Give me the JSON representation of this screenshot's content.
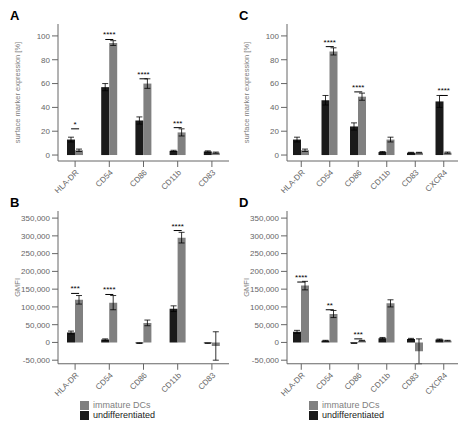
{
  "chart_data": [
    {
      "type": "bar",
      "title": "A",
      "categories": [
        "HLA-DR",
        "CD54",
        "CD86",
        "CD11b",
        "CD83"
      ],
      "series": [
        {
          "name": "undifferentiated",
          "color": "#1a1a1a",
          "values": [
            13,
            57,
            29,
            3.5,
            3
          ],
          "errors": [
            2,
            3,
            3,
            0.5,
            0.5
          ]
        },
        {
          "name": "immature DCs",
          "color": "#808080",
          "values": [
            4,
            94,
            60,
            19,
            2
          ],
          "errors": [
            1,
            2,
            4,
            3,
            0.5
          ]
        }
      ],
      "ylabel": "surface marker expression [%]",
      "ylim": [
        -5,
        110
      ],
      "yticks": [
        0,
        20,
        40,
        60,
        80,
        100
      ],
      "annotations": [
        {
          "x": "HLA-DR",
          "y": 22,
          "text": "*"
        },
        {
          "x": "CD54",
          "y": 97,
          "text": "****"
        },
        {
          "x": "CD86",
          "y": 64,
          "text": "****"
        },
        {
          "x": "CD11b",
          "y": 23,
          "text": "***"
        }
      ],
      "grid": false
    },
    {
      "type": "bar",
      "title": "C",
      "categories": [
        "HLA-DR",
        "CD54",
        "CD86",
        "CD11b",
        "CD83",
        "CXCR4"
      ],
      "series": [
        {
          "name": "undifferentiated",
          "color": "#1a1a1a",
          "values": [
            13,
            46,
            24,
            2.5,
            2,
            45
          ],
          "errors": [
            2,
            4,
            3,
            0.5,
            0.3,
            5
          ]
        },
        {
          "name": "immature DCs",
          "color": "#808080",
          "values": [
            4,
            87,
            49,
            13,
            2,
            2
          ],
          "errors": [
            1,
            3,
            3,
            2,
            0.3,
            0.5
          ]
        }
      ],
      "ylabel": "surface marker expression [%]",
      "ylim": [
        -5,
        110
      ],
      "yticks": [
        0,
        20,
        40,
        60,
        80,
        100
      ],
      "annotations": [
        {
          "x": "CD54",
          "y": 91,
          "text": "****"
        },
        {
          "x": "CD86",
          "y": 53,
          "text": "****"
        },
        {
          "x": "CXCR4",
          "y": 50,
          "text": "****"
        }
      ],
      "grid": false
    },
    {
      "type": "bar",
      "title": "B",
      "categories": [
        "HLA-DR",
        "CD54",
        "CD86",
        "CD11b",
        "CD83"
      ],
      "series": [
        {
          "name": "undifferentiated",
          "color": "#1a1a1a",
          "values": [
            28000,
            8000,
            -2000,
            95000,
            -2000
          ],
          "errors": [
            4000,
            2000,
            1000,
            8000,
            500
          ]
        },
        {
          "name": "immature DCs",
          "color": "#808080",
          "values": [
            120000,
            112000,
            55000,
            295000,
            -10000
          ],
          "errors": [
            12000,
            20000,
            8000,
            15000,
            40000
          ]
        }
      ],
      "ylabel": "GMFI",
      "ylim": [
        -60000,
        370000
      ],
      "yticks": [
        {
          "value": -50000,
          "label": "-50,000"
        },
        0,
        {
          "value": 50000,
          "label": "50,000"
        },
        {
          "value": 100000,
          "label": "100,000"
        },
        {
          "value": 150000,
          "label": "150,000"
        },
        {
          "value": 200000,
          "label": "200,000"
        },
        {
          "value": 250000,
          "label": "250,000"
        },
        {
          "value": 300000,
          "label": "300,000"
        },
        {
          "value": 350000,
          "label": "350,000"
        }
      ],
      "annotations": [
        {
          "x": "HLA-DR",
          "y": 138000,
          "text": "***"
        },
        {
          "x": "CD54",
          "y": 135000,
          "text": "****"
        },
        {
          "x": "CD11b",
          "y": 315000,
          "text": "****"
        }
      ],
      "grid": false,
      "legend": "bottom"
    },
    {
      "type": "bar",
      "title": "D",
      "categories": [
        "HLA-DR",
        "CD54",
        "CD86",
        "CD11b",
        "CD83",
        "CXCR4"
      ],
      "series": [
        {
          "name": "undifferentiated",
          "color": "#1a1a1a",
          "values": [
            30000,
            5000,
            -2000,
            12000,
            10000,
            8000
          ],
          "errors": [
            4000,
            1000,
            500,
            2000,
            1500,
            1500
          ]
        },
        {
          "name": "immature DCs",
          "color": "#808080",
          "values": [
            160000,
            80000,
            5000,
            110000,
            -25000,
            5000
          ],
          "errors": [
            12000,
            10000,
            1000,
            10000,
            35000,
            1000
          ]
        }
      ],
      "ylabel": "GMFI",
      "ylim": [
        -60000,
        370000
      ],
      "yticks": [
        {
          "value": -50000,
          "label": "-50,000"
        },
        0,
        {
          "value": 50000,
          "label": "50,000"
        },
        {
          "value": 100000,
          "label": "100,000"
        },
        {
          "value": 150000,
          "label": "150,000"
        },
        {
          "value": 200000,
          "label": "200,000"
        },
        {
          "value": 250000,
          "label": "250,000"
        },
        {
          "value": 300000,
          "label": "300,000"
        },
        {
          "value": 350000,
          "label": "350,000"
        }
      ],
      "annotations": [
        {
          "x": "HLA-DR",
          "y": 170000,
          "text": "****"
        },
        {
          "x": "CD54",
          "y": 92000,
          "text": "**"
        },
        {
          "x": "CD86",
          "y": 10000,
          "text": "***"
        }
      ],
      "grid": false,
      "legend": "bottom"
    }
  ]
}
